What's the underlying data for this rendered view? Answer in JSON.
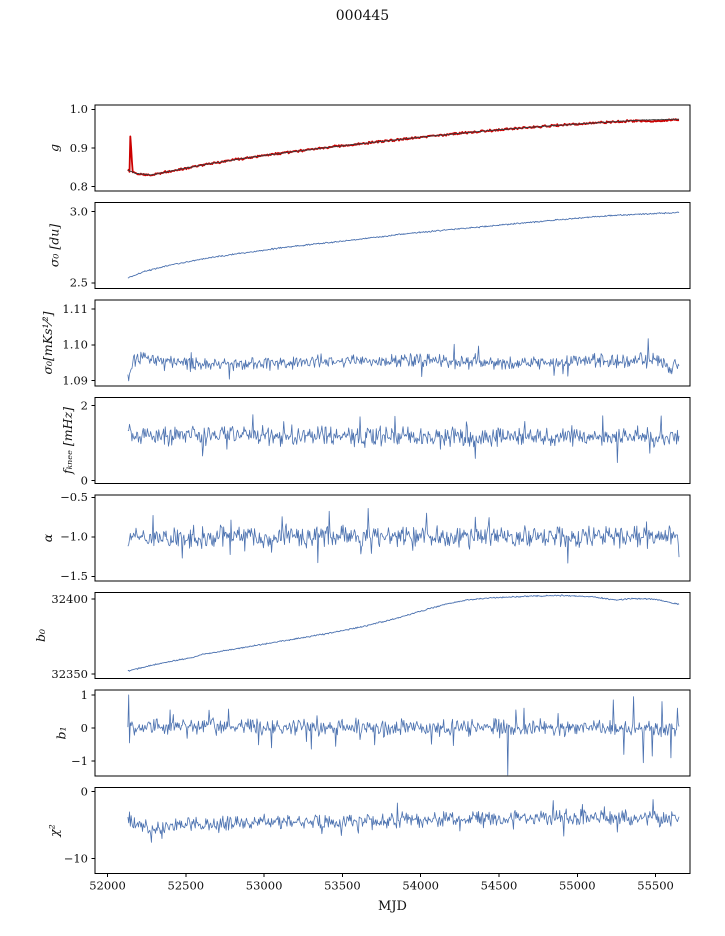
{
  "chart_data": {
    "type": "line",
    "title": "000445",
    "xlabel": "MJD",
    "xlim": [
      51920,
      55720
    ],
    "xrange": [
      52130,
      55650
    ],
    "xticks": [
      52000,
      52500,
      53000,
      53500,
      54000,
      54500,
      55000,
      55500
    ],
    "xtick_labels": [
      "52000",
      "52500",
      "53000",
      "53500",
      "54000",
      "54500",
      "55000",
      "55500"
    ],
    "panels": [
      {
        "ylabel": "g",
        "ylim": [
          0.789,
          1.011
        ],
        "yticks": [
          0.8,
          0.9,
          1.0
        ],
        "ytick_labels": [
          "0.8",
          "0.9",
          "1.0"
        ],
        "series": [
          {
            "name": "gain-data",
            "color": "#cc0000",
            "width": 1.8,
            "noise": 0.0018,
            "seed": 12,
            "trend": [
              [
                52130,
                0.843
              ],
              [
                52180,
                0.8345
              ],
              [
                52280,
                0.8305
              ],
              [
                52400,
                0.84
              ],
              [
                52600,
                0.856
              ],
              [
                52800,
                0.869
              ],
              [
                53000,
                0.881
              ],
              [
                53250,
                0.894
              ],
              [
                53500,
                0.906
              ],
              [
                53750,
                0.917
              ],
              [
                54000,
                0.928
              ],
              [
                54250,
                0.938
              ],
              [
                54500,
                0.947
              ],
              [
                54750,
                0.955
              ],
              [
                55000,
                0.962
              ],
              [
                55200,
                0.967
              ],
              [
                55380,
                0.9705
              ],
              [
                55480,
                0.968
              ],
              [
                55650,
                0.9735
              ]
            ],
            "spikes": [
              [
                52146,
                0.93
              ],
              [
                52151,
                0.9
              ],
              [
                52156,
                0.865
              ]
            ]
          },
          {
            "name": "gain-model",
            "color": "#3b3b3b",
            "width": 0.9,
            "noise": 0.0006,
            "seed": 11,
            "trend": [
              [
                52130,
                0.843
              ],
              [
                52180,
                0.8345
              ],
              [
                52280,
                0.8305
              ],
              [
                52400,
                0.84
              ],
              [
                52600,
                0.856
              ],
              [
                52800,
                0.869
              ],
              [
                53000,
                0.881
              ],
              [
                53250,
                0.894
              ],
              [
                53500,
                0.906
              ],
              [
                53750,
                0.917
              ],
              [
                54000,
                0.928
              ],
              [
                54250,
                0.938
              ],
              [
                54500,
                0.947
              ],
              [
                54750,
                0.955
              ],
              [
                55000,
                0.962
              ],
              [
                55200,
                0.967
              ],
              [
                55400,
                0.972
              ],
              [
                55650,
                0.9745
              ]
            ]
          }
        ]
      },
      {
        "ylabel": "σ₀ [du]",
        "ylim": [
          2.46,
          3.065
        ],
        "yticks": [
          2.5,
          3.0
        ],
        "ytick_labels": [
          "2.5",
          "3.0"
        ],
        "series": [
          {
            "name": "sigma0-du",
            "color": "#4c72b0",
            "width": 0.9,
            "noise": 0.0035,
            "seed": 21,
            "trend": [
              [
                52130,
                2.535
              ],
              [
                52250,
                2.585
              ],
              [
                52400,
                2.625
              ],
              [
                52550,
                2.655
              ],
              [
                52700,
                2.685
              ],
              [
                52900,
                2.715
              ],
              [
                53100,
                2.745
              ],
              [
                53300,
                2.77
              ],
              [
                53600,
                2.805
              ],
              [
                53900,
                2.845
              ],
              [
                54200,
                2.875
              ],
              [
                54500,
                2.905
              ],
              [
                54800,
                2.935
              ],
              [
                55000,
                2.955
              ],
              [
                55250,
                2.975
              ],
              [
                55450,
                2.985
              ],
              [
                55650,
                2.995
              ]
            ]
          }
        ]
      },
      {
        "ylabel": "σ₀[mKs¹⁄²]",
        "ylim": [
          1.0885,
          1.1125
        ],
        "yticks": [
          1.09,
          1.1,
          1.11
        ],
        "ytick_labels": [
          "1.09",
          "1.10",
          "1.11"
        ],
        "series": [
          {
            "name": "sigma0-mK",
            "color": "#4c72b0",
            "width": 0.8,
            "noise": 0.0013,
            "heavy": 0.06,
            "seed": 31,
            "trend": [
              [
                52130,
                1.0905
              ],
              [
                52170,
                1.0958
              ],
              [
                52300,
                1.0962
              ],
              [
                52600,
                1.0948
              ],
              [
                53000,
                1.0949
              ],
              [
                53500,
                1.0953
              ],
              [
                54000,
                1.0957
              ],
              [
                54400,
                1.0948
              ],
              [
                54800,
                1.095
              ],
              [
                55100,
                1.0955
              ],
              [
                55300,
                1.0955
              ],
              [
                55500,
                1.0958
              ],
              [
                55600,
                1.0934
              ],
              [
                55650,
                1.0952
              ]
            ]
          }
        ]
      },
      {
        "ylabel": "fₖₙₑₑ [mHz]",
        "ylim": [
          -0.08,
          2.22
        ],
        "yticks": [
          0,
          2
        ],
        "ytick_labels": [
          "0",
          "2"
        ],
        "series": [
          {
            "name": "f-knee",
            "color": "#4c72b0",
            "width": 0.8,
            "noise": 0.17,
            "heavy": 0.1,
            "seed": 41,
            "trend": [
              [
                52130,
                1.22
              ],
              [
                53000,
                1.2
              ],
              [
                54000,
                1.17
              ],
              [
                55650,
                1.18
              ]
            ]
          }
        ]
      },
      {
        "ylabel": "α",
        "ylim": [
          -1.56,
          -0.47
        ],
        "yticks": [
          -1.5,
          -1.0,
          -0.5
        ],
        "ytick_labels": [
          "−1.5",
          "−1.0",
          "−0.5"
        ],
        "series": [
          {
            "name": "alpha",
            "color": "#4c72b0",
            "width": 0.8,
            "noise": 0.085,
            "heavy": 0.08,
            "seed": 51,
            "trend": [
              [
                52130,
                -1.0
              ],
              [
                55650,
                -1.0
              ]
            ]
          }
        ]
      },
      {
        "ylabel": "b₀",
        "ylim": [
          32347,
          32404.5
        ],
        "yticks": [
          32350,
          32400
        ],
        "ytick_labels": [
          "32350",
          "32400"
        ],
        "series": [
          {
            "name": "b0",
            "color": "#4c72b0",
            "width": 0.9,
            "noise": 0.3,
            "seed": 61,
            "trend": [
              [
                52130,
                32352
              ],
              [
                52250,
                32355
              ],
              [
                52400,
                32358.5
              ],
              [
                52550,
                32361
              ],
              [
                52600,
                32363
              ],
              [
                52800,
                32366.5
              ],
              [
                53000,
                32370
              ],
              [
                53200,
                32373.5
              ],
              [
                53400,
                32377
              ],
              [
                53600,
                32381
              ],
              [
                53800,
                32386
              ],
              [
                54000,
                32392
              ],
              [
                54150,
                32396.5
              ],
              [
                54300,
                32399.5
              ],
              [
                54450,
                32401
              ],
              [
                54700,
                32402
              ],
              [
                54900,
                32402.5
              ],
              [
                55100,
                32401.5
              ],
              [
                55250,
                32399.5
              ],
              [
                55350,
                32400.5
              ],
              [
                55500,
                32400
              ],
              [
                55650,
                32396.5
              ]
            ]
          }
        ]
      },
      {
        "ylabel": "b₁",
        "ylim": [
          -1.45,
          1.15
        ],
        "yticks": [
          -1,
          0,
          1
        ],
        "ytick_labels": [
          "−1",
          "0",
          "1"
        ],
        "series": [
          {
            "name": "b1",
            "color": "#4c72b0",
            "width": 0.8,
            "noise": 0.16,
            "heavy": 0.07,
            "seed": 71,
            "trend": [
              [
                52130,
                0.05
              ],
              [
                55650,
                0.0
              ]
            ],
            "spikes": [
              [
                52136,
                1.0
              ],
              [
                52142,
                -0.45
              ],
              [
                52400,
                0.55
              ],
              [
                53050,
                -0.6
              ],
              [
                54555,
                -1.42
              ],
              [
                54610,
                0.55
              ],
              [
                54660,
                0.6
              ],
              [
                55230,
                0.85
              ],
              [
                55300,
                -0.8
              ],
              [
                55360,
                0.95
              ],
              [
                55420,
                -1.05
              ],
              [
                55480,
                -0.85
              ],
              [
                55540,
                0.8
              ],
              [
                55600,
                -0.9
              ],
              [
                55640,
                0.6
              ]
            ]
          }
        ]
      },
      {
        "ylabel": "χ²",
        "ylim": [
          -12.2,
          0.6
        ],
        "yticks": [
          0,
          -10
        ],
        "ytick_labels": [
          "0",
          "−10"
        ],
        "series": [
          {
            "name": "chi2",
            "color": "#4c72b0",
            "width": 0.8,
            "noise": 0.75,
            "heavy": 0.06,
            "seed": 81,
            "trend": [
              [
                52130,
                -4.0
              ],
              [
                52220,
                -5.2
              ],
              [
                52300,
                -5.6
              ],
              [
                52420,
                -5.0
              ],
              [
                52700,
                -4.9
              ],
              [
                53000,
                -4.6
              ],
              [
                53500,
                -4.4
              ],
              [
                54000,
                -4.3
              ],
              [
                54500,
                -4.0
              ],
              [
                54800,
                -3.8
              ],
              [
                55100,
                -3.9
              ],
              [
                55650,
                -4.1
              ]
            ]
          }
        ]
      }
    ]
  }
}
